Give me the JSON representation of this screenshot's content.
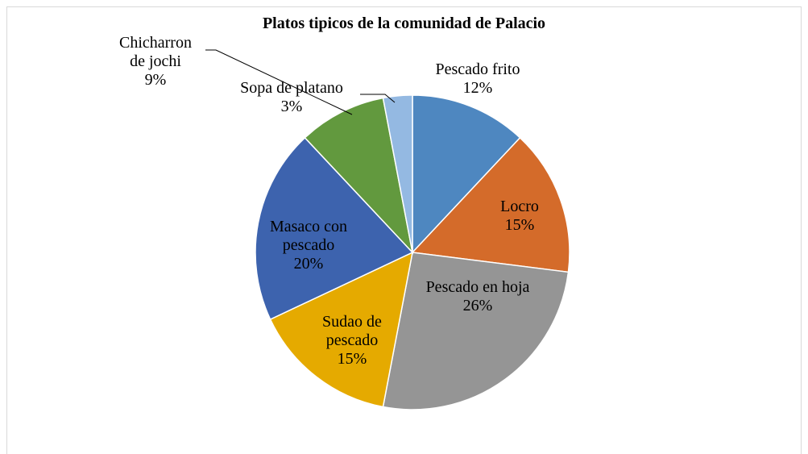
{
  "chart_data": {
    "type": "pie",
    "title": "Platos tipicos de la comunidad de Palacio",
    "categories": [
      "Pescado frito",
      "Locro",
      "Pescado en hoja",
      "Sudao de pescado",
      "Masaco con pescado",
      "Chicharron de jochi",
      "Sopa de platano"
    ],
    "values": [
      12,
      15,
      26,
      15,
      20,
      9,
      3
    ],
    "value_labels": [
      "12%",
      "15%",
      "26%",
      "15%",
      "20%",
      "9%",
      "3%"
    ],
    "colors": [
      "#4e87c0",
      "#d46b2a",
      "#959595",
      "#e5aa00",
      "#3d63ae",
      "#62993e",
      "#94b9e2"
    ]
  }
}
